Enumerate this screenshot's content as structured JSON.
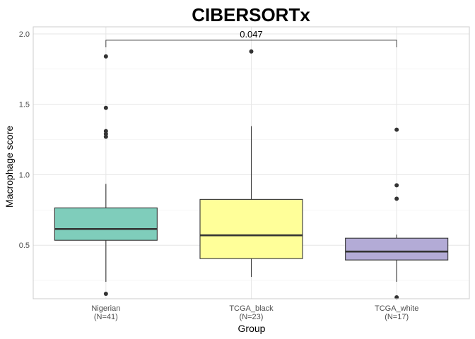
{
  "chart_data": {
    "type": "boxplot",
    "title": "CIBERSORTx",
    "xlabel": "Group",
    "ylabel": "Macrophage score",
    "ylim": [
      0.12,
      2.05
    ],
    "yticks": [
      0.5,
      1.0,
      1.5,
      2.0
    ],
    "ytick_labels": [
      "0.5",
      "1.0",
      "1.5",
      "2.0"
    ],
    "grid": true,
    "groups": [
      {
        "name": "Nigerian",
        "n_label": "(N=41)",
        "color": "#7fcdbb",
        "whisker_low": 0.24,
        "q1": 0.535,
        "median": 0.615,
        "q3": 0.765,
        "whisker_high": 0.935,
        "outliers": [
          0.155,
          1.27,
          1.29,
          1.31,
          1.475,
          1.84
        ]
      },
      {
        "name": "TCGA_black",
        "n_label": "(N=23)",
        "color": "#ffff99",
        "whisker_low": 0.275,
        "q1": 0.405,
        "median": 0.57,
        "q3": 0.825,
        "whisker_high": 1.345,
        "outliers": [
          1.875
        ]
      },
      {
        "name": "TCGA_white",
        "n_label": "(N=17)",
        "color": "#b3abd6",
        "whisker_low": 0.24,
        "q1": 0.395,
        "median": 0.455,
        "q3": 0.55,
        "whisker_high": 0.575,
        "outliers": [
          0.13,
          0.83,
          0.925,
          1.32
        ]
      }
    ],
    "comparison": {
      "from": "Nigerian",
      "to": "TCGA_white",
      "y": 1.955,
      "label": "0.047"
    }
  }
}
